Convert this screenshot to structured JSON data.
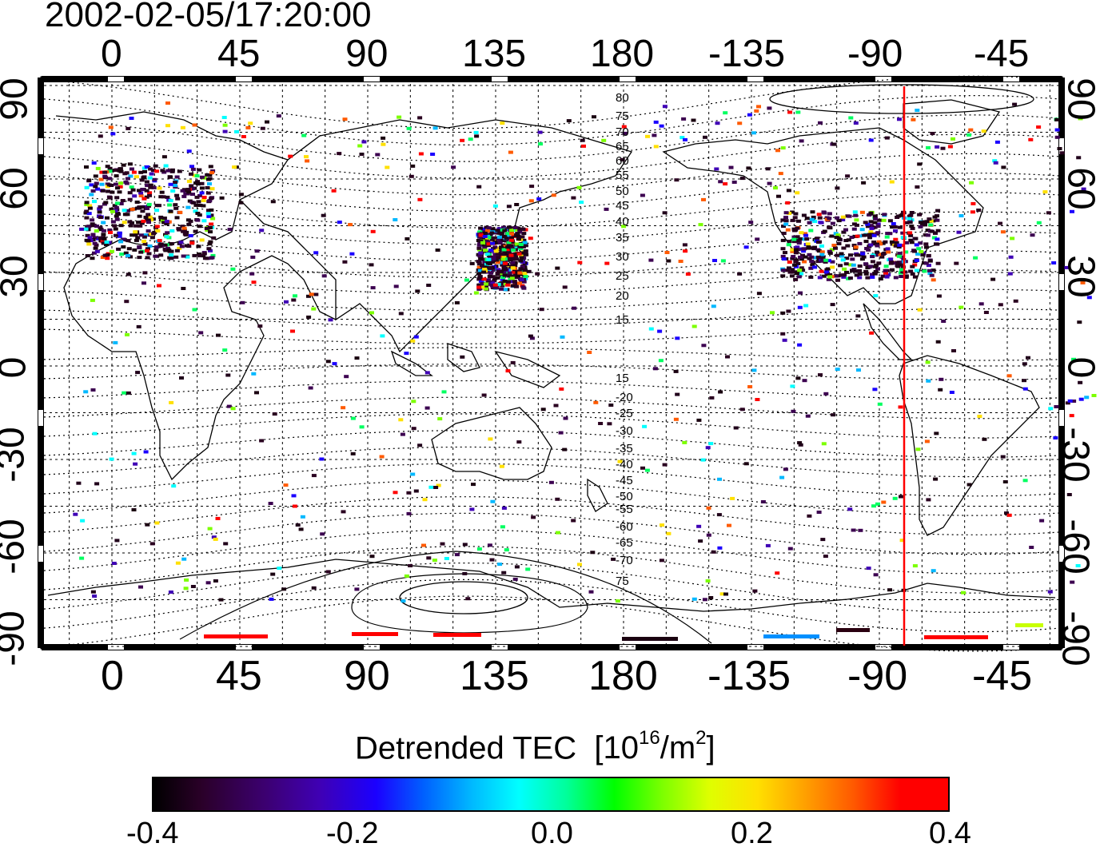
{
  "title": "2002-02-05/17:20:00",
  "top_lon_ticks": [
    "0",
    "45",
    "90",
    "135",
    "180",
    "-135",
    "-90",
    "-45"
  ],
  "bottom_lon_ticks": [
    "0",
    "45",
    "90",
    "135",
    "180",
    "-135",
    "-90",
    "-45"
  ],
  "left_lat_ticks": [
    "90",
    "60",
    "30",
    "0",
    "-30",
    "-60",
    "-90"
  ],
  "right_lat_ticks": [
    "90",
    "60",
    "30",
    "0",
    "-30",
    "-60",
    "-90"
  ],
  "contour_labels_north": [
    "80",
    "75",
    "70",
    "65",
    "60",
    "55",
    "50",
    "45",
    "40",
    "35",
    "30",
    "25",
    "20",
    "15"
  ],
  "contour_labels_south": [
    "15",
    "-20",
    "-25",
    "-30",
    "-35",
    "-40",
    "-45",
    "-50",
    "-55",
    "-60",
    "-65",
    "-70",
    "75"
  ],
  "colorbar": {
    "title": "Detrended TEC",
    "units_prefix": "[10",
    "units_exp": "16",
    "units_mid": "/m",
    "units_exp2": "2",
    "units_suffix": "]",
    "ticks": [
      "-0.4",
      "-0.2",
      "0.0",
      "0.2",
      "0.4"
    ],
    "range": [
      -0.4,
      0.4
    ]
  },
  "meridian_marker": {
    "lon": -80,
    "color": "#ff0000"
  },
  "colors": {
    "background": "#ffffff",
    "frame": "#000000"
  },
  "regions": [
    {
      "name": "europe",
      "lon": [
        -10,
        35
      ],
      "lat": [
        35,
        65
      ]
    },
    {
      "name": "japan",
      "lon": [
        128,
        145
      ],
      "lat": [
        25,
        45
      ]
    },
    {
      "name": "north-america",
      "lon": [
        -125,
        -70
      ],
      "lat": [
        28,
        50
      ]
    }
  ]
}
